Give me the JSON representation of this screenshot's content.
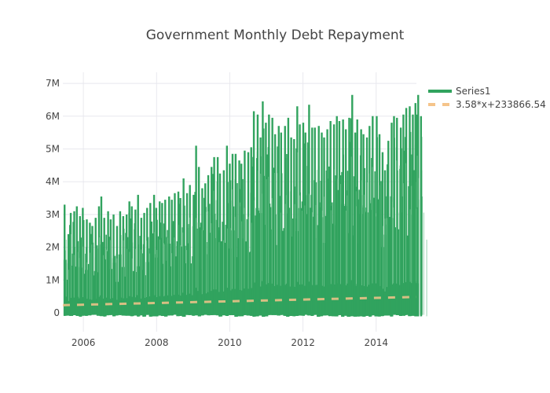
{
  "chart_data": {
    "type": "line",
    "title": "Government Monthly Debt Repayment",
    "xlabel": "",
    "ylabel": "",
    "x_range": [
      2005.44,
      2015.1
    ],
    "ylim": [
      -600000,
      7300000
    ],
    "grid": true,
    "legend_position": "top-right",
    "x_ticks": [
      {
        "value": 2006,
        "label": "2006"
      },
      {
        "value": 2008,
        "label": "2008"
      },
      {
        "value": 2010,
        "label": "2010"
      },
      {
        "value": 2012,
        "label": "2012"
      },
      {
        "value": 2014,
        "label": "2014"
      }
    ],
    "y_ticks": [
      {
        "value": 0,
        "label": "0"
      },
      {
        "value": 1000000,
        "label": "1M"
      },
      {
        "value": 2000000,
        "label": "2M"
      },
      {
        "value": 3000000,
        "label": "3M"
      },
      {
        "value": 4000000,
        "label": "4M"
      },
      {
        "value": 5000000,
        "label": "5M"
      },
      {
        "value": 6000000,
        "label": "6M"
      },
      {
        "value": 7000000,
        "label": "7M"
      }
    ],
    "series": [
      {
        "name": "Series1",
        "color": "#31a35e",
        "style": "solid",
        "start_year": 2005.5,
        "step_years": 0.08333,
        "monthly_peaks": [
          3300000,
          2400000,
          3050000,
          3100000,
          3250000,
          2950000,
          3200000,
          2850000,
          2750000,
          2650000,
          2900000,
          3250000,
          3550000,
          2900000,
          3100000,
          2850000,
          3000000,
          2650000,
          3100000,
          2950000,
          3000000,
          3400000,
          3250000,
          3150000,
          3600000,
          2900000,
          3050000,
          3200000,
          3350000,
          3600000,
          3200000,
          3400000,
          3350000,
          3450000,
          3550000,
          3450000,
          3650000,
          3700000,
          3500000,
          4100000,
          3650000,
          3900000,
          3600000,
          5100000,
          4450000,
          3800000,
          3950000,
          4200000,
          4450000,
          4750000,
          4750000,
          4250000,
          4350000,
          5100000,
          4550000,
          4850000,
          4850000,
          4650000,
          4550000,
          4950000,
          4900000,
          5050000,
          6150000,
          6050000,
          5350000,
          6450000,
          5800000,
          6050000,
          5950000,
          5450000,
          5700000,
          5500000,
          5700000,
          5950000,
          5350000,
          5300000,
          6300000,
          5750000,
          5800000,
          5500000,
          6350000,
          5650000,
          5650000,
          5700000,
          5500000,
          5350000,
          5600000,
          5850000,
          5750000,
          6000000,
          5850000,
          5900000,
          5600000,
          5950000,
          6650000,
          5500000,
          5900000,
          5600000,
          5450000,
          5350000,
          5700000,
          6000000,
          6000000,
          5450000,
          4900000,
          4350000,
          5250000,
          5800000,
          6000000,
          5950000,
          5650000,
          6050000,
          6250000,
          6300000,
          6050000,
          6400000,
          6050000,
          6650000,
          6000000,
          4350000
        ]
      },
      {
        "name": "3.58*x+233866.54",
        "color": "#f5c48a",
        "style": "dashed",
        "slope": 3.58,
        "intercept": 233866.54,
        "x_start_index": 0,
        "x_end_index": 70000
      }
    ]
  }
}
